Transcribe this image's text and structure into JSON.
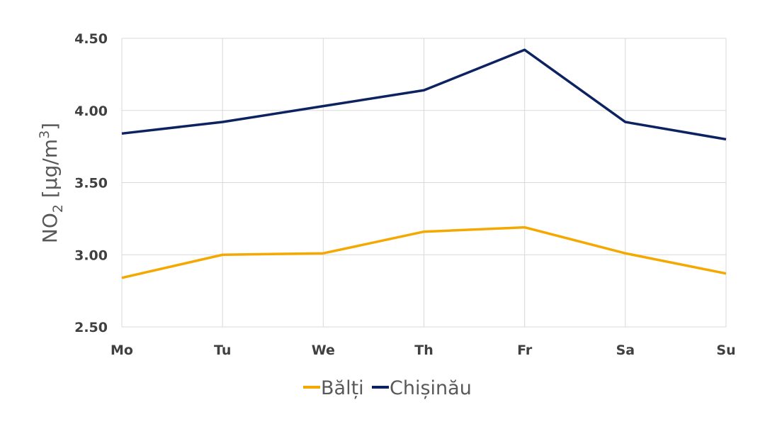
{
  "chart_data": {
    "type": "line",
    "categories": [
      "Mo",
      "Tu",
      "We",
      "Th",
      "Fr",
      "Sa",
      "Su"
    ],
    "series": [
      {
        "name": "Bălți",
        "color": "#f5a800",
        "values": [
          2.84,
          3.0,
          3.01,
          3.16,
          3.19,
          3.01,
          2.87
        ]
      },
      {
        "name": "Chișinău",
        "color": "#0d2260",
        "values": [
          3.84,
          3.92,
          4.03,
          4.14,
          4.42,
          3.92,
          3.8
        ]
      }
    ],
    "ylabel": {
      "main": "NO",
      "sub": "2",
      "unit": " [µg/m",
      "sup": "3",
      "close": "]"
    },
    "ylim": [
      2.5,
      4.5
    ],
    "yticks": [
      "2.50",
      "3.00",
      "3.50",
      "4.00",
      "4.50"
    ],
    "grid": true,
    "legend_position": "bottom"
  }
}
